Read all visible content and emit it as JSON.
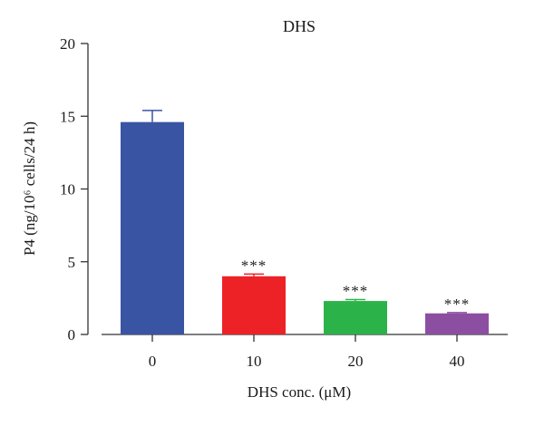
{
  "chart_data": {
    "type": "bar",
    "title": "DHS",
    "xlabel": "DHS conc. (μM)",
    "ylabel": "P4 (ng/10⁶ cells/24 h)",
    "categories": [
      "0",
      "10",
      "20",
      "40"
    ],
    "values": [
      14.6,
      4.0,
      2.3,
      1.45
    ],
    "errors": [
      0.8,
      0.15,
      0.1,
      0.05
    ],
    "colors": [
      "#3a54a4",
      "#ec2227",
      "#2bb34a",
      "#8c4ea1"
    ],
    "significance": [
      "",
      "***",
      "***",
      "***"
    ],
    "ylim": [
      0,
      20
    ],
    "yticks": [
      "0",
      "5",
      "10",
      "15",
      "20"
    ],
    "grid": false
  }
}
